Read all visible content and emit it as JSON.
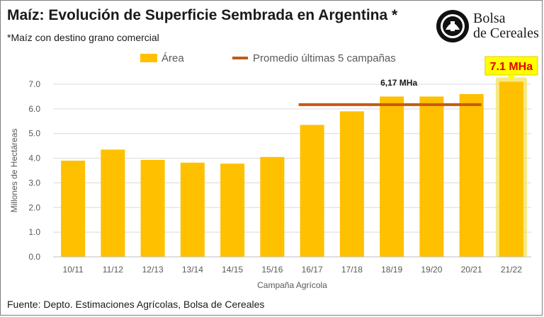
{
  "title": "Maíz: Evolución de Superficie Sembrada en Argentina *",
  "subtitle": "*Maíz con destino grano comercial",
  "logo": {
    "text_line1": "Bolsa",
    "text_line2": "de Cereales"
  },
  "source": "Fuente: Depto.  Estimaciones Agrícolas, Bolsa de Cereales",
  "colors": {
    "bar": "#FFC000",
    "highlight_glow": "#F2E35B",
    "average_line": "#C55A11",
    "callout_text": "#E00000",
    "callout_fill": "#FFFF00"
  },
  "chart_data": {
    "type": "bar",
    "categories": [
      "10/11",
      "11/12",
      "12/13",
      "13/14",
      "14/15",
      "15/16",
      "16/17",
      "17/18",
      "18/19",
      "19/20",
      "20/21",
      "21/22"
    ],
    "series": [
      {
        "name": "Área",
        "values": [
          3.9,
          4.35,
          3.93,
          3.82,
          3.78,
          4.05,
          5.35,
          5.9,
          6.5,
          6.5,
          6.6,
          7.1
        ]
      }
    ],
    "average_line": {
      "name": "Promedio últimas 5 campañas",
      "value": 6.17,
      "label": "6,17 MHa",
      "from": "16/17",
      "to": "20/21"
    },
    "highlight": {
      "category": "21/22",
      "label": "7.1 MHa"
    },
    "ylabel": "Millones de Hectáreas",
    "xlabel": "Campaña Agrícola",
    "ylim": [
      0,
      7
    ],
    "yticks": [
      "0.0",
      "1.0",
      "2.0",
      "3.0",
      "4.0",
      "5.0",
      "6.0",
      "7.0"
    ],
    "legend_position": "top",
    "grid": true
  }
}
